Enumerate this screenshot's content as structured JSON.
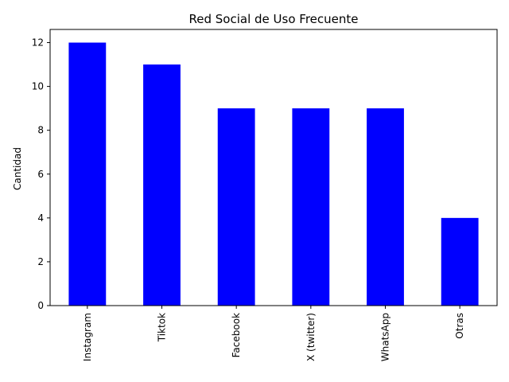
{
  "chart_data": {
    "type": "bar",
    "title": "Red Social de Uso Frecuente",
    "xlabel": "",
    "ylabel": "Cantidad",
    "categories": [
      "Instagram",
      "Tiktok",
      "Facebook",
      "X (twitter)",
      "WhatsApp",
      "Otras"
    ],
    "values": [
      12,
      11,
      9,
      9,
      9,
      4
    ],
    "ylim": [
      0,
      12.6
    ],
    "yticks": [
      "0",
      "2",
      "4",
      "6",
      "8",
      "10",
      "12"
    ],
    "bar_color": "#0000ff",
    "grid": false,
    "legend": "none"
  }
}
